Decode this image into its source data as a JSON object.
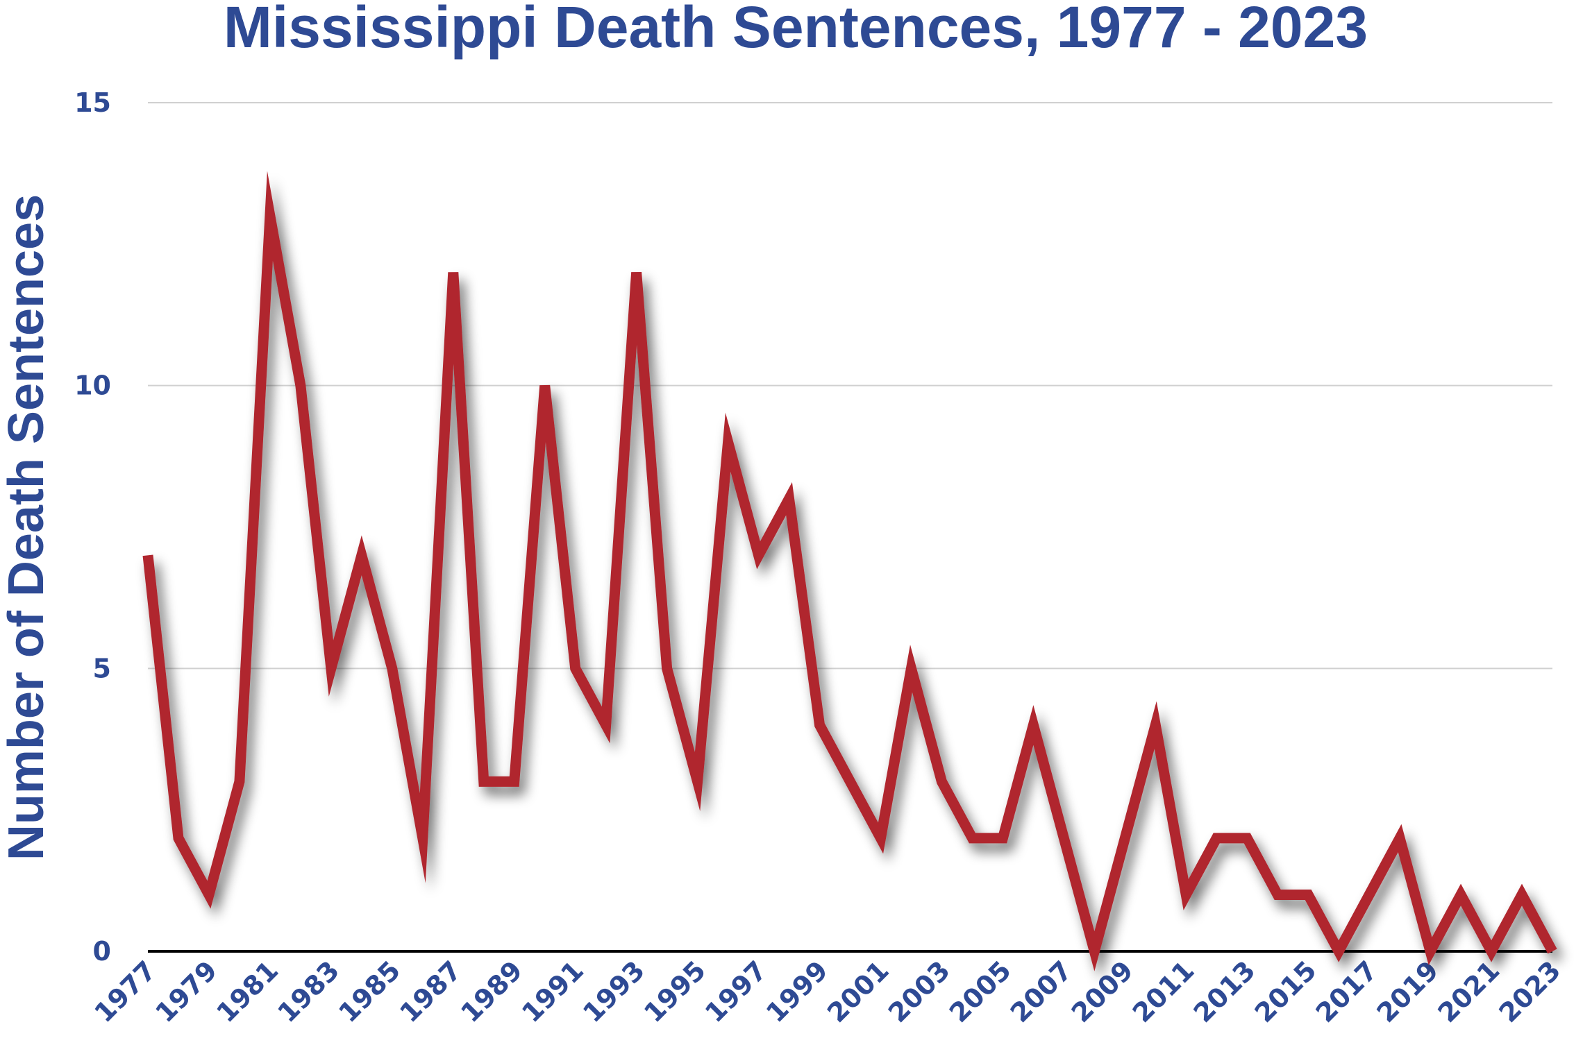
{
  "chart_data": {
    "type": "line",
    "title": "Mississippi Death Sentences, 1977 - 2023",
    "ylabel": "Number of Death Sentences",
    "x": [
      1977,
      1978,
      1979,
      1980,
      1981,
      1982,
      1983,
      1984,
      1985,
      1986,
      1987,
      1988,
      1989,
      1990,
      1991,
      1992,
      1993,
      1994,
      1995,
      1996,
      1997,
      1998,
      1999,
      2000,
      2001,
      2002,
      2003,
      2004,
      2005,
      2006,
      2007,
      2008,
      2009,
      2010,
      2011,
      2012,
      2013,
      2014,
      2015,
      2016,
      2017,
      2018,
      2019,
      2020,
      2021,
      2022,
      2023
    ],
    "values": [
      7,
      2,
      1,
      3,
      13,
      10,
      5,
      7,
      5,
      2,
      12,
      3,
      3,
      10,
      5,
      4,
      12,
      5,
      3,
      9,
      7,
      8,
      4,
      3,
      2,
      5,
      3,
      2,
      2,
      4,
      2,
      0,
      2,
      4,
      1,
      2,
      2,
      1,
      1,
      0,
      1,
      2,
      0,
      1,
      0,
      1,
      0
    ],
    "color": "#b0262f",
    "xlim": [
      1977,
      2023
    ],
    "xticks": [
      1977,
      1979,
      1981,
      1983,
      1985,
      1987,
      1989,
      1991,
      1993,
      1995,
      1997,
      1999,
      2001,
      2003,
      2005,
      2007,
      2009,
      2011,
      2013,
      2015,
      2017,
      2019,
      2021,
      2023
    ],
    "ylim": [
      0,
      15
    ],
    "yticks": [
      0,
      5,
      10,
      15
    ],
    "grid": true
  }
}
